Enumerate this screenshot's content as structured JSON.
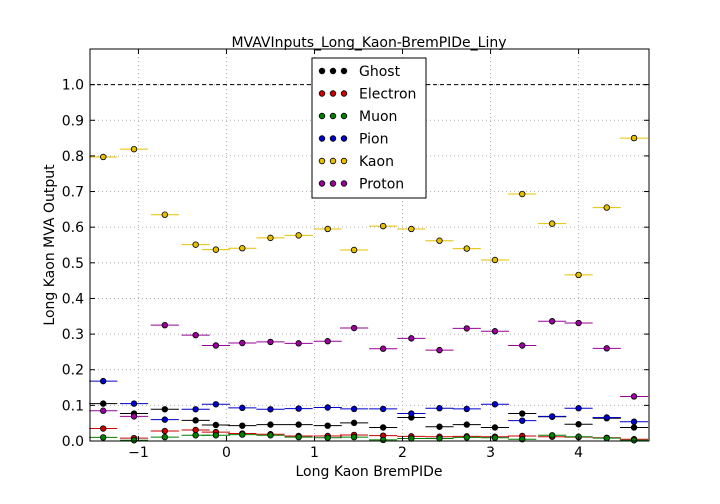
{
  "chart_data": {
    "type": "scatter",
    "title": "MVAVInputs_Long_Kaon-BremPIDe_Liny",
    "xlabel": "Long Kaon BremPIDe",
    "ylabel": "Long Kaon MVA Output",
    "xlim": [
      -1.55,
      4.8
    ],
    "ylim": [
      0.0,
      1.1
    ],
    "grid": true,
    "reference_line": 1.0,
    "legend_position": "top-center",
    "x_ticks": [
      -1,
      0,
      1,
      2,
      3,
      4
    ],
    "x_tick_labels": [
      "−1",
      "0",
      "1",
      "2",
      "3",
      "4"
    ],
    "y_ticks": [
      0.0,
      0.1,
      0.2,
      0.3,
      0.4,
      0.5,
      0.6,
      0.7,
      0.8,
      0.9,
      1.0
    ],
    "y_tick_labels": [
      "0.0",
      "0.1",
      "0.2",
      "0.3",
      "0.4",
      "0.5",
      "0.6",
      "0.7",
      "0.8",
      "0.9",
      "1.0"
    ],
    "x": [
      -1.4,
      -1.05,
      -0.7,
      -0.35,
      -0.12,
      0.18,
      0.5,
      0.82,
      1.15,
      1.45,
      1.78,
      2.1,
      2.42,
      2.73,
      3.05,
      3.36,
      3.7,
      4.0,
      4.32,
      4.63
    ],
    "x_halfwidth": 0.16,
    "series": [
      {
        "name": "Ghost",
        "color": "#000000",
        "values": [
          0.105,
          0.077,
          0.089,
          0.058,
          0.045,
          0.043,
          0.046,
          0.046,
          0.043,
          0.051,
          0.038,
          0.066,
          0.04,
          0.046,
          0.038,
          0.077,
          0.068,
          0.047,
          0.064,
          0.038
        ]
      },
      {
        "name": "Electron",
        "color": "#cc0000",
        "values": [
          0.035,
          0.008,
          0.028,
          0.031,
          0.025,
          0.021,
          0.019,
          0.014,
          0.014,
          0.017,
          0.015,
          0.013,
          0.012,
          0.013,
          0.012,
          0.014,
          0.012,
          0.011,
          0.009,
          0.005
        ]
      },
      {
        "name": "Muon",
        "color": "#007f00",
        "values": [
          0.01,
          0.002,
          0.011,
          0.016,
          0.016,
          0.018,
          0.016,
          0.011,
          0.009,
          0.011,
          0.003,
          0.007,
          0.007,
          0.01,
          0.009,
          0.005,
          0.016,
          0.012,
          0.008,
          0.002
        ]
      },
      {
        "name": "Pion",
        "color": "#0000cc",
        "values": [
          0.168,
          0.105,
          0.06,
          0.089,
          0.103,
          0.093,
          0.089,
          0.091,
          0.094,
          0.09,
          0.09,
          0.077,
          0.092,
          0.09,
          0.103,
          0.057,
          0.069,
          0.092,
          0.066,
          0.054
        ]
      },
      {
        "name": "Kaon",
        "color": "#e6c000",
        "values": [
          0.797,
          0.819,
          0.635,
          0.551,
          0.537,
          0.541,
          0.57,
          0.577,
          0.595,
          0.536,
          0.603,
          0.595,
          0.562,
          0.54,
          0.508,
          0.693,
          0.61,
          0.466,
          0.655,
          0.85
        ]
      },
      {
        "name": "Proton",
        "color": "#990099",
        "values": [
          0.085,
          0.069,
          0.325,
          0.297,
          0.268,
          0.275,
          0.278,
          0.274,
          0.28,
          0.317,
          0.259,
          0.288,
          0.255,
          0.316,
          0.308,
          0.268,
          0.336,
          0.331,
          0.26,
          0.125
        ]
      }
    ]
  }
}
